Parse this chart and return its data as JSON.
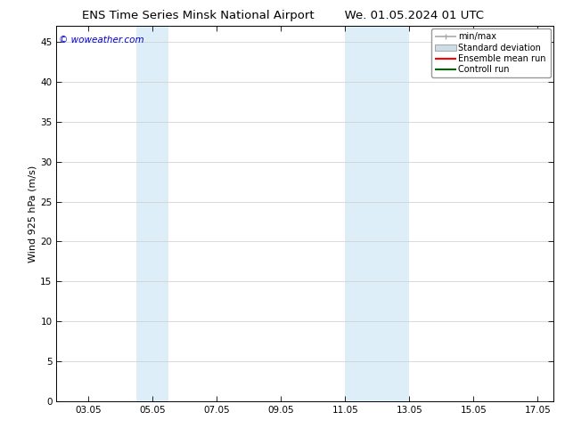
{
  "title_left": "ENS Time Series Minsk National Airport",
  "title_right": "We. 01.05.2024 01 UTC",
  "ylabel": "Wind 925 hPa (m/s)",
  "watermark": "© woweather.com",
  "watermark_color": "#0000cc",
  "xmin": 2.05,
  "xmax": 17.55,
  "ymin": 0,
  "ymax": 47,
  "yticks": [
    0,
    5,
    10,
    15,
    20,
    25,
    30,
    35,
    40,
    45
  ],
  "xtick_labels": [
    "03.05",
    "05.05",
    "07.05",
    "09.05",
    "11.05",
    "13.05",
    "15.05",
    "17.05"
  ],
  "xtick_positions": [
    3.05,
    5.05,
    7.05,
    9.05,
    11.05,
    13.05,
    15.05,
    17.05
  ],
  "shaded_bands": [
    {
      "xmin": 4.55,
      "xmax": 5.55,
      "color": "#ddeef8"
    },
    {
      "xmin": 11.05,
      "xmax": 13.05,
      "color": "#ddeef8"
    }
  ],
  "legend_items": [
    {
      "label": "min/max",
      "type": "minmax",
      "color": "#aaaaaa"
    },
    {
      "label": "Standard deviation",
      "type": "stddev",
      "color": "#ccdde8"
    },
    {
      "label": "Ensemble mean run",
      "type": "line",
      "color": "#ff0000"
    },
    {
      "label": "Controll run",
      "type": "line",
      "color": "#006600"
    }
  ],
  "background_color": "#ffffff",
  "plot_bg_color": "#ffffff",
  "grid_color": "#cccccc",
  "title_fontsize": 9.5,
  "axis_label_fontsize": 8,
  "tick_fontsize": 7.5,
  "legend_fontsize": 7,
  "watermark_fontsize": 7.5
}
